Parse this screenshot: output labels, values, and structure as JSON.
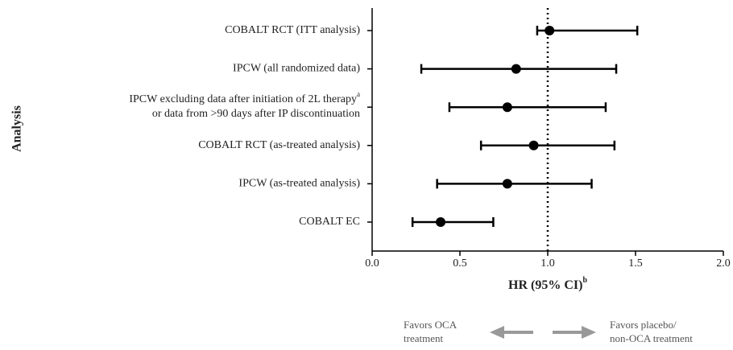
{
  "chart_data": {
    "type": "forest",
    "y_label": "Analysis",
    "x_label": "HR (95% CI)",
    "x_label_superscript": "b",
    "categories": [
      [
        "COBALT RCT (ITT analysis)"
      ],
      [
        "IPCW (all randomized data)"
      ],
      [
        "IPCW excluding data after initiation of 2L therapy",
        "or data from >90 days after IP discontinuation"
      ],
      [
        "COBALT RCT (as-treated analysis)"
      ],
      [
        "IPCW (as-treated analysis)"
      ],
      [
        "COBALT EC"
      ]
    ],
    "category_notes": [
      {
        "category": 2,
        "text": "a"
      }
    ],
    "values": [
      1.01,
      0.82,
      0.77,
      0.92,
      0.77,
      0.39
    ],
    "lower": [
      0.94,
      0.28,
      0.44,
      0.62,
      0.37,
      0.23
    ],
    "upper": [
      1.51,
      1.39,
      1.33,
      1.38,
      1.25,
      0.69
    ],
    "color": "#000000",
    "xlim": [
      0,
      2
    ],
    "xticks": [
      {
        "value": 0,
        "label": "0.0"
      },
      {
        "value": 0.5,
        "label": "0.5"
      },
      {
        "value": 1,
        "label": "1.0"
      },
      {
        "value": 1.5,
        "label": "1.5"
      },
      {
        "value": 2,
        "label": "2.0"
      }
    ],
    "reference_line": 1,
    "direction_labels": {
      "left": [
        "Favors OCA",
        "treatment"
      ],
      "right": [
        "Favors placebo/",
        "non-OCA treatment"
      ]
    },
    "arrow_color": "#999999"
  }
}
